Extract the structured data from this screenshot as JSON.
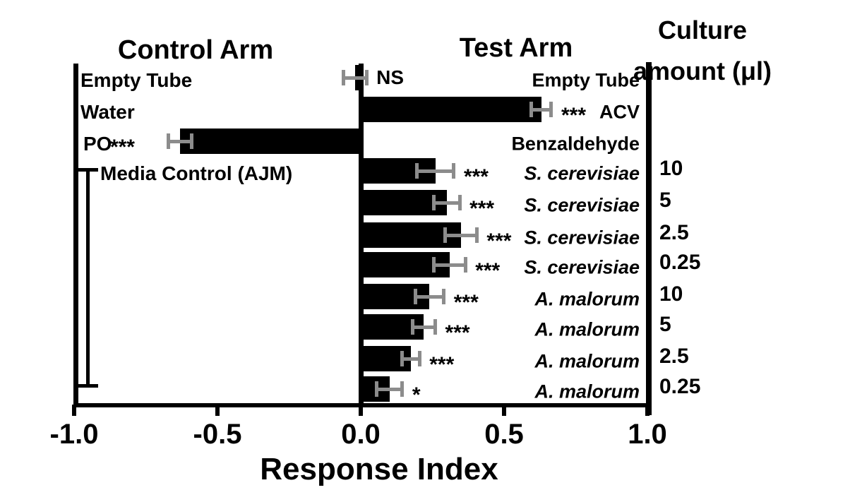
{
  "chart_data": {
    "type": "bar",
    "orientation": "horizontal",
    "title_left": "Control Arm",
    "title_right": "Test Arm",
    "culture_header_line1": "Culture",
    "culture_header_line2": "amount (μl)",
    "xlabel": "Response Index",
    "xlim": [
      -1.0,
      1.0
    ],
    "x_ticks": [
      {
        "value": -1.0,
        "label": "-1.0"
      },
      {
        "value": -0.5,
        "label": "-0.5"
      },
      {
        "value": 0.0,
        "label": "0.0"
      },
      {
        "value": 0.5,
        "label": "0.5"
      },
      {
        "value": 1.0,
        "label": "1.0"
      }
    ],
    "bar_color": "#000000",
    "error_bar_color": "#8c8c8c",
    "grid": false,
    "group_bracket": {
      "from_row": 3,
      "to_row": 10,
      "group_label": "Media Control (AJM)"
    },
    "rows": [
      {
        "left_label": "Empty Tube",
        "right_label": "Empty Tube",
        "right_label_italic": false,
        "value": -0.02,
        "error": 0.04,
        "significance": "NS",
        "significance_side": "right",
        "culture_amount": ""
      },
      {
        "left_label": "Water",
        "right_label": "ACV",
        "right_label_italic": false,
        "value": 0.63,
        "error": 0.035,
        "significance": "***",
        "significance_side": "right",
        "culture_amount": ""
      },
      {
        "left_label": "PO",
        "right_label": "Benzaldehyde",
        "right_label_italic": false,
        "value": -0.63,
        "error": 0.04,
        "significance": "***",
        "significance_side": "left",
        "culture_amount": ""
      },
      {
        "left_label": "Media Control (AJM)",
        "right_label": "S. cerevisiae",
        "right_label_italic": true,
        "value": 0.26,
        "error": 0.065,
        "significance": "***",
        "significance_side": "right",
        "culture_amount": "10"
      },
      {
        "left_label": "",
        "right_label": "S. cerevisiae",
        "right_label_italic": true,
        "value": 0.3,
        "error": 0.045,
        "significance": "***",
        "significance_side": "right",
        "culture_amount": "5"
      },
      {
        "left_label": "",
        "right_label": "S. cerevisiae",
        "right_label_italic": true,
        "value": 0.35,
        "error": 0.055,
        "significance": "***",
        "significance_side": "right",
        "culture_amount": "2.5"
      },
      {
        "left_label": "",
        "right_label": "S. cerevisiae",
        "right_label_italic": true,
        "value": 0.31,
        "error": 0.055,
        "significance": "***",
        "significance_side": "right",
        "culture_amount": "0.25"
      },
      {
        "left_label": "",
        "right_label": "A. malorum",
        "right_label_italic": true,
        "value": 0.24,
        "error": 0.05,
        "significance": "***",
        "significance_side": "right",
        "culture_amount": "10"
      },
      {
        "left_label": "",
        "right_label": "A. malorum",
        "right_label_italic": true,
        "value": 0.22,
        "error": 0.04,
        "significance": "***",
        "significance_side": "right",
        "culture_amount": "5"
      },
      {
        "left_label": "",
        "right_label": "A. malorum",
        "right_label_italic": true,
        "value": 0.175,
        "error": 0.03,
        "significance": "***",
        "significance_side": "right",
        "culture_amount": "2.5"
      },
      {
        "left_label": "",
        "right_label": "A. malorum",
        "right_label_italic": true,
        "value": 0.1,
        "error": 0.045,
        "significance": "*",
        "significance_side": "right",
        "culture_amount": "0.25"
      }
    ]
  }
}
